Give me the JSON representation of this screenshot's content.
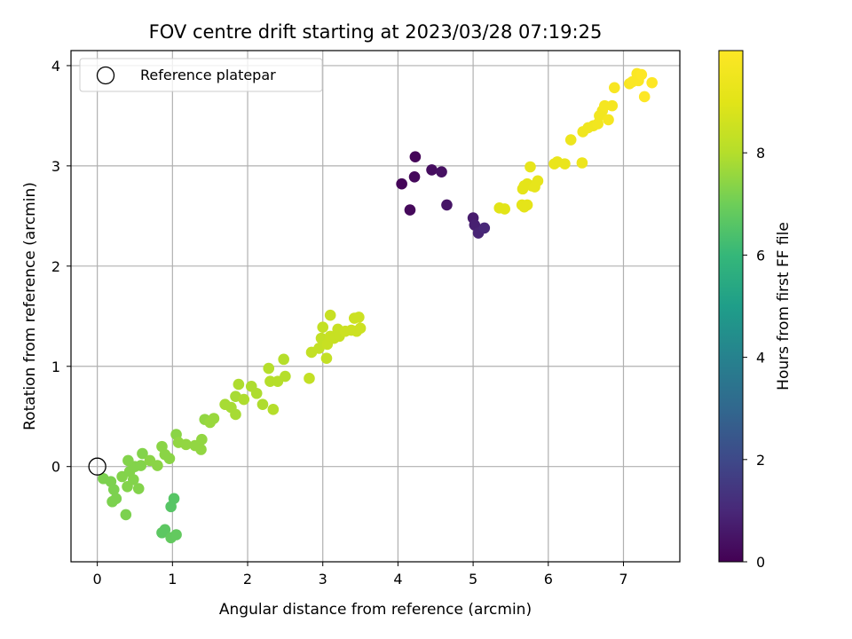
{
  "chart_data": {
    "type": "scatter",
    "title": "FOV centre drift starting at 2023/03/28 07:19:25",
    "xlabel": "Angular distance from reference (arcmin)",
    "ylabel": "Rotation from reference (arcmin)",
    "xlim": [
      -0.35,
      7.75
    ],
    "ylim": [
      -0.95,
      4.15
    ],
    "x_ticks": [
      0,
      1,
      2,
      3,
      4,
      5,
      6,
      7
    ],
    "y_ticks": [
      0,
      1,
      2,
      3,
      4
    ],
    "x_tick_labels": [
      "0",
      "1",
      "2",
      "3",
      "4",
      "5",
      "6",
      "7"
    ],
    "y_tick_labels": [
      "0",
      "1",
      "2",
      "3",
      "4"
    ],
    "grid": true,
    "legend": {
      "placement": "top-left",
      "entries": [
        {
          "label": "Reference platepar",
          "marker": "open-circle"
        }
      ]
    },
    "reference_point": {
      "x": 0,
      "y": 0
    },
    "colorbar": {
      "label": "Hours from first FF file",
      "colormap": "viridis",
      "range": [
        0,
        10
      ],
      "ticks": [
        0,
        2,
        4,
        6,
        8
      ],
      "tick_labels": [
        "0",
        "2",
        "4",
        "6",
        "8"
      ]
    },
    "points": [
      {
        "x": 4.05,
        "y": 2.82,
        "c": 0.1
      },
      {
        "x": 4.23,
        "y": 3.09,
        "c": 0.1
      },
      {
        "x": 4.22,
        "y": 2.89,
        "c": 0.2
      },
      {
        "x": 4.16,
        "y": 2.56,
        "c": 0.2
      },
      {
        "x": 4.45,
        "y": 2.96,
        "c": 0.3
      },
      {
        "x": 4.58,
        "y": 2.94,
        "c": 0.4
      },
      {
        "x": 4.65,
        "y": 2.61,
        "c": 0.5
      },
      {
        "x": 5.0,
        "y": 2.48,
        "c": 0.7
      },
      {
        "x": 5.02,
        "y": 2.41,
        "c": 0.8
      },
      {
        "x": 5.07,
        "y": 2.33,
        "c": 0.9
      },
      {
        "x": 5.15,
        "y": 2.38,
        "c": 1.0
      },
      {
        "x": 0.98,
        "y": -0.4,
        "c": 6.6
      },
      {
        "x": 1.02,
        "y": -0.32,
        "c": 6.6
      },
      {
        "x": 0.86,
        "y": -0.66,
        "c": 6.7
      },
      {
        "x": 0.9,
        "y": -0.63,
        "c": 6.7
      },
      {
        "x": 0.98,
        "y": -0.71,
        "c": 6.8
      },
      {
        "x": 1.05,
        "y": -0.68,
        "c": 6.8
      },
      {
        "x": 0.08,
        "y": -0.12,
        "c": 7.2
      },
      {
        "x": 0.18,
        "y": -0.15,
        "c": 7.2
      },
      {
        "x": 0.22,
        "y": -0.23,
        "c": 7.2
      },
      {
        "x": 0.2,
        "y": -0.35,
        "c": 7.2
      },
      {
        "x": 0.25,
        "y": -0.32,
        "c": 7.2
      },
      {
        "x": 0.38,
        "y": -0.48,
        "c": 7.2
      },
      {
        "x": 0.33,
        "y": -0.1,
        "c": 7.3
      },
      {
        "x": 0.4,
        "y": -0.2,
        "c": 7.3
      },
      {
        "x": 0.43,
        "y": -0.05,
        "c": 7.3
      },
      {
        "x": 0.48,
        "y": -0.13,
        "c": 7.3
      },
      {
        "x": 0.55,
        "y": -0.22,
        "c": 7.3
      },
      {
        "x": 0.5,
        "y": 0.0,
        "c": 7.3
      },
      {
        "x": 0.41,
        "y": 0.06,
        "c": 7.3
      },
      {
        "x": 0.58,
        "y": 0.01,
        "c": 7.3
      },
      {
        "x": 0.6,
        "y": 0.13,
        "c": 7.3
      },
      {
        "x": 0.7,
        "y": 0.06,
        "c": 7.4
      },
      {
        "x": 0.8,
        "y": 0.01,
        "c": 7.4
      },
      {
        "x": 0.86,
        "y": 0.2,
        "c": 7.4
      },
      {
        "x": 0.9,
        "y": 0.12,
        "c": 7.4
      },
      {
        "x": 0.96,
        "y": 0.08,
        "c": 7.4
      },
      {
        "x": 1.05,
        "y": 0.32,
        "c": 7.4
      },
      {
        "x": 1.08,
        "y": 0.24,
        "c": 7.5
      },
      {
        "x": 1.18,
        "y": 0.22,
        "c": 7.5
      },
      {
        "x": 1.3,
        "y": 0.21,
        "c": 7.5
      },
      {
        "x": 1.38,
        "y": 0.17,
        "c": 7.5
      },
      {
        "x": 1.39,
        "y": 0.27,
        "c": 7.5
      },
      {
        "x": 1.43,
        "y": 0.47,
        "c": 7.5
      },
      {
        "x": 1.5,
        "y": 0.44,
        "c": 7.6
      },
      {
        "x": 1.55,
        "y": 0.48,
        "c": 7.6
      },
      {
        "x": 1.7,
        "y": 0.62,
        "c": 7.8
      },
      {
        "x": 1.78,
        "y": 0.59,
        "c": 7.8
      },
      {
        "x": 1.84,
        "y": 0.52,
        "c": 7.8
      },
      {
        "x": 1.84,
        "y": 0.7,
        "c": 7.8
      },
      {
        "x": 1.88,
        "y": 0.82,
        "c": 7.9
      },
      {
        "x": 1.95,
        "y": 0.67,
        "c": 7.9
      },
      {
        "x": 2.05,
        "y": 0.8,
        "c": 7.9
      },
      {
        "x": 2.12,
        "y": 0.73,
        "c": 7.9
      },
      {
        "x": 2.2,
        "y": 0.62,
        "c": 7.9
      },
      {
        "x": 2.28,
        "y": 0.98,
        "c": 8.0
      },
      {
        "x": 2.3,
        "y": 0.85,
        "c": 8.0
      },
      {
        "x": 2.34,
        "y": 0.57,
        "c": 8.0
      },
      {
        "x": 2.4,
        "y": 0.85,
        "c": 8.0
      },
      {
        "x": 2.48,
        "y": 1.07,
        "c": 8.0
      },
      {
        "x": 2.5,
        "y": 0.9,
        "c": 8.0
      },
      {
        "x": 2.82,
        "y": 0.88,
        "c": 8.3
      },
      {
        "x": 2.85,
        "y": 1.14,
        "c": 8.3
      },
      {
        "x": 2.95,
        "y": 1.18,
        "c": 8.3
      },
      {
        "x": 2.98,
        "y": 1.28,
        "c": 8.3
      },
      {
        "x": 3.0,
        "y": 1.39,
        "c": 8.3
      },
      {
        "x": 3.05,
        "y": 1.08,
        "c": 8.3
      },
      {
        "x": 3.06,
        "y": 1.22,
        "c": 8.4
      },
      {
        "x": 3.1,
        "y": 1.3,
        "c": 8.4
      },
      {
        "x": 3.1,
        "y": 1.51,
        "c": 8.4
      },
      {
        "x": 3.15,
        "y": 1.28,
        "c": 8.4
      },
      {
        "x": 3.2,
        "y": 1.37,
        "c": 8.4
      },
      {
        "x": 3.22,
        "y": 1.3,
        "c": 8.4
      },
      {
        "x": 3.3,
        "y": 1.35,
        "c": 8.5
      },
      {
        "x": 3.38,
        "y": 1.36,
        "c": 8.5
      },
      {
        "x": 3.42,
        "y": 1.48,
        "c": 8.5
      },
      {
        "x": 3.45,
        "y": 1.35,
        "c": 8.5
      },
      {
        "x": 3.48,
        "y": 1.49,
        "c": 8.5
      },
      {
        "x": 3.5,
        "y": 1.38,
        "c": 8.5
      },
      {
        "x": 5.35,
        "y": 2.58,
        "c": 9.0
      },
      {
        "x": 5.42,
        "y": 2.57,
        "c": 9.0
      },
      {
        "x": 5.65,
        "y": 2.61,
        "c": 9.1
      },
      {
        "x": 5.68,
        "y": 2.59,
        "c": 9.1
      },
      {
        "x": 5.72,
        "y": 2.61,
        "c": 9.1
      },
      {
        "x": 5.68,
        "y": 2.8,
        "c": 9.1
      },
      {
        "x": 5.66,
        "y": 2.77,
        "c": 9.1
      },
      {
        "x": 5.72,
        "y": 2.82,
        "c": 9.1
      },
      {
        "x": 5.78,
        "y": 2.8,
        "c": 9.1
      },
      {
        "x": 5.82,
        "y": 2.79,
        "c": 9.2
      },
      {
        "x": 5.86,
        "y": 2.85,
        "c": 9.2
      },
      {
        "x": 5.76,
        "y": 2.99,
        "c": 9.2
      },
      {
        "x": 6.08,
        "y": 3.02,
        "c": 9.3
      },
      {
        "x": 6.12,
        "y": 3.04,
        "c": 9.3
      },
      {
        "x": 6.22,
        "y": 3.02,
        "c": 9.3
      },
      {
        "x": 6.45,
        "y": 3.03,
        "c": 9.4
      },
      {
        "x": 6.3,
        "y": 3.26,
        "c": 9.4
      },
      {
        "x": 6.46,
        "y": 3.34,
        "c": 9.5
      },
      {
        "x": 6.53,
        "y": 3.38,
        "c": 9.5
      },
      {
        "x": 6.6,
        "y": 3.4,
        "c": 9.5
      },
      {
        "x": 6.66,
        "y": 3.42,
        "c": 9.6
      },
      {
        "x": 6.68,
        "y": 3.5,
        "c": 9.6
      },
      {
        "x": 6.72,
        "y": 3.55,
        "c": 9.6
      },
      {
        "x": 6.75,
        "y": 3.6,
        "c": 9.7
      },
      {
        "x": 6.8,
        "y": 3.46,
        "c": 9.7
      },
      {
        "x": 6.85,
        "y": 3.6,
        "c": 9.7
      },
      {
        "x": 6.88,
        "y": 3.78,
        "c": 9.8
      },
      {
        "x": 7.08,
        "y": 3.82,
        "c": 9.8
      },
      {
        "x": 7.12,
        "y": 3.84,
        "c": 9.9
      },
      {
        "x": 7.18,
        "y": 3.92,
        "c": 9.9
      },
      {
        "x": 7.2,
        "y": 3.85,
        "c": 9.9
      },
      {
        "x": 7.24,
        "y": 3.91,
        "c": 10.0
      },
      {
        "x": 7.28,
        "y": 3.69,
        "c": 10.0
      },
      {
        "x": 7.38,
        "y": 3.83,
        "c": 10.0
      }
    ]
  }
}
